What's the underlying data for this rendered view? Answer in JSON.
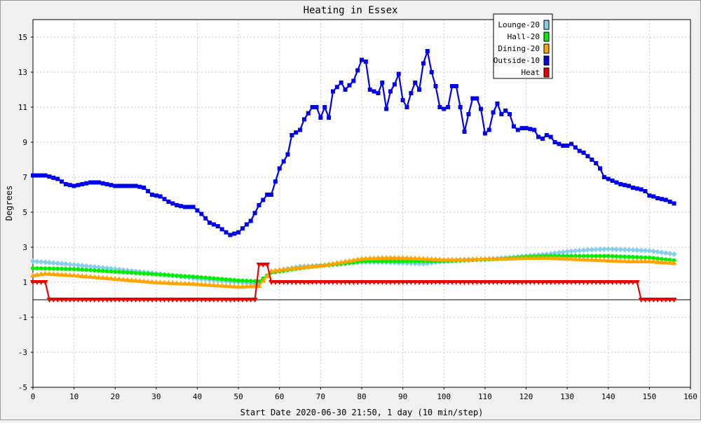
{
  "chart_data": {
    "type": "line",
    "title": "Heating in Essex",
    "xlabel": "Start Date 2020-06-30 21:50, 1 day (10 min/step)",
    "ylabel": "Degrees",
    "xlim": [
      0,
      160
    ],
    "ylim": [
      -5,
      16
    ],
    "xticks": [
      0,
      10,
      20,
      30,
      40,
      50,
      60,
      70,
      80,
      90,
      100,
      110,
      120,
      130,
      140,
      150,
      160
    ],
    "yticks": [
      -5,
      -3,
      -1,
      1,
      3,
      5,
      7,
      9,
      11,
      13,
      15
    ],
    "grid": true,
    "legend_position": "top-right",
    "series": [
      {
        "name": "Lounge-20",
        "color": "#87ceeb",
        "marker": "diamond",
        "points": [
          [
            0,
            2.2
          ],
          [
            10,
            2.0
          ],
          [
            20,
            1.75
          ],
          [
            30,
            1.5
          ],
          [
            40,
            1.2
          ],
          [
            50,
            1.0
          ],
          [
            55,
            0.9
          ],
          [
            58,
            1.6
          ],
          [
            65,
            1.9
          ],
          [
            70,
            1.95
          ],
          [
            75,
            2.05
          ],
          [
            80,
            2.15
          ],
          [
            85,
            2.15
          ],
          [
            90,
            2.1
          ],
          [
            95,
            2.05
          ],
          [
            100,
            2.2
          ],
          [
            105,
            2.3
          ],
          [
            110,
            2.3
          ],
          [
            115,
            2.4
          ],
          [
            120,
            2.5
          ],
          [
            125,
            2.6
          ],
          [
            130,
            2.75
          ],
          [
            135,
            2.85
          ],
          [
            140,
            2.9
          ],
          [
            145,
            2.85
          ],
          [
            150,
            2.8
          ],
          [
            156,
            2.6
          ]
        ]
      },
      {
        "name": "Hall-20",
        "color": "#00ee00",
        "marker": "circle",
        "points": [
          [
            0,
            1.8
          ],
          [
            10,
            1.75
          ],
          [
            20,
            1.6
          ],
          [
            30,
            1.45
          ],
          [
            40,
            1.3
          ],
          [
            50,
            1.1
          ],
          [
            55,
            1.05
          ],
          [
            58,
            1.55
          ],
          [
            65,
            1.8
          ],
          [
            70,
            1.95
          ],
          [
            75,
            2.05
          ],
          [
            80,
            2.2
          ],
          [
            85,
            2.2
          ],
          [
            90,
            2.2
          ],
          [
            95,
            2.2
          ],
          [
            100,
            2.2
          ],
          [
            105,
            2.25
          ],
          [
            110,
            2.3
          ],
          [
            115,
            2.35
          ],
          [
            120,
            2.45
          ],
          [
            125,
            2.5
          ],
          [
            130,
            2.5
          ],
          [
            135,
            2.5
          ],
          [
            140,
            2.5
          ],
          [
            145,
            2.45
          ],
          [
            150,
            2.4
          ],
          [
            156,
            2.25
          ]
        ]
      },
      {
        "name": "Dining-20",
        "color": "#ffa500",
        "marker": "triangle-up",
        "points": [
          [
            0,
            1.4
          ],
          [
            3,
            1.5
          ],
          [
            10,
            1.4
          ],
          [
            20,
            1.2
          ],
          [
            30,
            1.0
          ],
          [
            40,
            0.9
          ],
          [
            50,
            0.75
          ],
          [
            55,
            0.8
          ],
          [
            58,
            1.65
          ],
          [
            65,
            1.85
          ],
          [
            70,
            1.95
          ],
          [
            75,
            2.15
          ],
          [
            80,
            2.35
          ],
          [
            85,
            2.4
          ],
          [
            90,
            2.4
          ],
          [
            95,
            2.35
          ],
          [
            100,
            2.3
          ],
          [
            105,
            2.3
          ],
          [
            110,
            2.35
          ],
          [
            115,
            2.35
          ],
          [
            120,
            2.4
          ],
          [
            125,
            2.4
          ],
          [
            130,
            2.35
          ],
          [
            135,
            2.3
          ],
          [
            140,
            2.25
          ],
          [
            145,
            2.2
          ],
          [
            150,
            2.2
          ],
          [
            156,
            2.1
          ]
        ]
      },
      {
        "name": "Outside-10",
        "color": "#0000ee",
        "marker": "square",
        "points": [
          [
            0,
            7.1
          ],
          [
            3,
            7.1
          ],
          [
            6,
            6.9
          ],
          [
            8,
            6.6
          ],
          [
            10,
            6.5
          ],
          [
            12,
            6.6
          ],
          [
            14,
            6.7
          ],
          [
            16,
            6.7
          ],
          [
            18,
            6.6
          ],
          [
            20,
            6.5
          ],
          [
            25,
            6.5
          ],
          [
            27,
            6.4
          ],
          [
            29,
            6.0
          ],
          [
            31,
            5.9
          ],
          [
            33,
            5.6
          ],
          [
            35,
            5.4
          ],
          [
            37,
            5.3
          ],
          [
            39,
            5.3
          ],
          [
            41,
            4.9
          ],
          [
            43,
            4.4
          ],
          [
            45,
            4.2
          ],
          [
            47,
            3.85
          ],
          [
            48,
            3.7
          ],
          [
            50,
            3.85
          ],
          [
            52,
            4.3
          ],
          [
            53,
            4.5
          ],
          [
            55,
            5.4
          ],
          [
            57,
            6.0
          ],
          [
            58,
            6.0
          ],
          [
            60,
            7.5
          ],
          [
            62,
            8.3
          ],
          [
            63,
            9.4
          ],
          [
            65,
            9.7
          ],
          [
            66,
            10.3
          ],
          [
            68,
            11.0
          ],
          [
            69,
            11.0
          ],
          [
            70,
            10.4
          ],
          [
            71,
            11.0
          ],
          [
            72,
            10.4
          ],
          [
            73,
            11.9
          ],
          [
            75,
            12.4
          ],
          [
            76,
            12.0
          ],
          [
            78,
            12.5
          ],
          [
            80,
            13.7
          ],
          [
            81,
            13.6
          ],
          [
            82,
            12.0
          ],
          [
            83,
            11.9
          ],
          [
            84,
            11.8
          ],
          [
            85,
            12.4
          ],
          [
            86,
            10.9
          ],
          [
            87,
            11.9
          ],
          [
            88,
            12.3
          ],
          [
            89,
            12.9
          ],
          [
            90,
            11.4
          ],
          [
            91,
            11.0
          ],
          [
            92,
            11.8
          ],
          [
            93,
            12.4
          ],
          [
            94,
            12.0
          ],
          [
            95,
            13.5
          ],
          [
            96,
            14.2
          ],
          [
            97,
            13.0
          ],
          [
            98,
            12.2
          ],
          [
            99,
            11.0
          ],
          [
            100,
            10.9
          ],
          [
            101,
            11.0
          ],
          [
            102,
            12.2
          ],
          [
            103,
            12.2
          ],
          [
            104,
            11.0
          ],
          [
            105,
            9.6
          ],
          [
            106,
            10.6
          ],
          [
            107,
            11.5
          ],
          [
            108,
            11.5
          ],
          [
            109,
            10.9
          ],
          [
            110,
            9.5
          ],
          [
            111,
            9.7
          ],
          [
            112,
            10.7
          ],
          [
            113,
            11.2
          ],
          [
            114,
            10.6
          ],
          [
            115,
            10.8
          ],
          [
            116,
            10.6
          ],
          [
            117,
            9.9
          ],
          [
            118,
            9.7
          ],
          [
            119,
            9.8
          ],
          [
            120,
            9.8
          ],
          [
            122,
            9.7
          ],
          [
            123,
            9.3
          ],
          [
            124,
            9.2
          ],
          [
            125,
            9.4
          ],
          [
            126,
            9.3
          ],
          [
            127,
            9.0
          ],
          [
            128,
            8.9
          ],
          [
            129,
            8.8
          ],
          [
            130,
            8.8
          ],
          [
            131,
            8.9
          ],
          [
            132,
            8.7
          ],
          [
            133,
            8.5
          ],
          [
            134,
            8.4
          ],
          [
            135,
            8.2
          ],
          [
            136,
            8.0
          ],
          [
            137,
            7.8
          ],
          [
            138,
            7.5
          ],
          [
            139,
            7.0
          ],
          [
            140,
            6.9
          ],
          [
            141,
            6.8
          ],
          [
            142,
            6.7
          ],
          [
            143,
            6.6
          ],
          [
            145,
            6.5
          ],
          [
            146,
            6.4
          ],
          [
            148,
            6.3
          ],
          [
            149,
            6.2
          ],
          [
            150,
            5.95
          ],
          [
            151,
            5.9
          ],
          [
            152,
            5.8
          ],
          [
            154,
            5.7
          ],
          [
            155,
            5.6
          ],
          [
            156,
            5.5
          ]
        ]
      },
      {
        "name": "Heat",
        "color": "#ee0000",
        "marker": "triangle-down",
        "points": [
          [
            0,
            1
          ],
          [
            3,
            1
          ],
          [
            4,
            0
          ],
          [
            54,
            0
          ],
          [
            55,
            2
          ],
          [
            57,
            2
          ],
          [
            58,
            1
          ],
          [
            147,
            1
          ],
          [
            148,
            0
          ],
          [
            156,
            0
          ]
        ]
      }
    ]
  }
}
